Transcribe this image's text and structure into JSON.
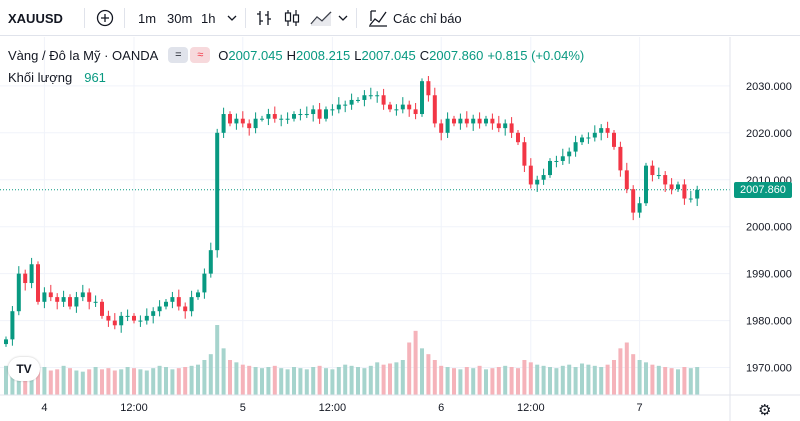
{
  "toolbar": {
    "symbol": "XAUUSD",
    "add_symbol_icon": "plus-circle-icon",
    "timeframes": [
      "1m",
      "30m",
      "1h"
    ],
    "chevron": "chevron-down-icon",
    "bar_type_icons": [
      "bars-icon",
      "candles-icon",
      "area-icon"
    ],
    "indicators_label": "Các chỉ báo",
    "indicators_icon": "indicators-icon"
  },
  "legend": {
    "title": "Vàng / Đô la Mỹ · OANDA",
    "O_label": "O",
    "O": "2007.045",
    "H_label": "H",
    "H": "2008.215",
    "L_label": "L",
    "L": "2007.045",
    "C_label": "C",
    "C": "2007.860",
    "change": "+0.815 (+0.04%)",
    "volume_label": "Khối lượng",
    "volume": "961"
  },
  "price_tag": "2007.860",
  "colors": {
    "up": "#089981",
    "down": "#f23645",
    "vol_up": "#a6d4cd",
    "vol_down": "#f5b3ba",
    "grid": "#f0f3fa"
  },
  "chart_data": {
    "type": "candlestick",
    "y_ticks": [
      "2030.000",
      "2020.000",
      "2010.000",
      "2000.000",
      "1990.000",
      "1980.000",
      "1970.000"
    ],
    "y_tick_values": [
      2030,
      2020,
      2010,
      2000,
      1990,
      1980,
      1970
    ],
    "x_ticks": [
      "4",
      "12:00",
      "5",
      "12:00",
      "6",
      "12:00",
      "7"
    ],
    "x_tick_index": [
      6,
      20,
      37,
      51,
      68,
      82,
      99
    ],
    "ylim": [
      1965,
      2037
    ],
    "last_price": 2007.86,
    "close": [
      1976,
      1982,
      1990,
      1988,
      1992,
      1984,
      1986,
      1985,
      1984,
      1985,
      1983,
      1985,
      1986,
      1984,
      1984,
      1981,
      1980,
      1979,
      1981,
      1981,
      1980,
      1980,
      1981,
      1982,
      1983,
      1984,
      1985,
      1983,
      1982,
      1985,
      1986,
      1990,
      1995,
      2020,
      2024,
      2022,
      2023,
      2022,
      2021,
      2023,
      2023,
      2024,
      2023,
      2023,
      2023,
      2024,
      2024,
      2024,
      2025,
      2023,
      2025,
      2025,
      2026,
      2026,
      2027,
      2027,
      2028,
      2028,
      2028,
      2026,
      2025,
      2025,
      2026,
      2025,
      2024,
      2031,
      2028,
      2022,
      2020,
      2023,
      2022,
      2023,
      2022,
      2023,
      2022,
      2023,
      2022,
      2021,
      2022,
      2020,
      2018,
      2013,
      2009,
      2010,
      2011,
      2014,
      2014,
      2015,
      2016,
      2018,
      2019,
      2019,
      2020,
      2021,
      2020,
      2017,
      2012,
      2008,
      2003,
      2005,
      2013,
      2011,
      2011,
      2009,
      2008,
      2009,
      2006,
      2006,
      2007.86
    ],
    "volumes": [
      25,
      22,
      24,
      23,
      20,
      22,
      24,
      21,
      22,
      25,
      23,
      21,
      20,
      22,
      24,
      22,
      23,
      21,
      22,
      24,
      23,
      22,
      21,
      23,
      25,
      24,
      22,
      23,
      24,
      25,
      26,
      30,
      35,
      60,
      40,
      30,
      28,
      26,
      25,
      24,
      23,
      24,
      25,
      23,
      22,
      24,
      23,
      22,
      24,
      25,
      23,
      22,
      24,
      26,
      25,
      24,
      23,
      25,
      28,
      26,
      27,
      28,
      30,
      45,
      55,
      40,
      35,
      30,
      25,
      24,
      23,
      22,
      24,
      23,
      25,
      22,
      23,
      24,
      25,
      24,
      23,
      30,
      28,
      26,
      25,
      24,
      23,
      25,
      26,
      24,
      27,
      26,
      25,
      24,
      26,
      30,
      40,
      45,
      35,
      30,
      28,
      26,
      25,
      24,
      23,
      22,
      24,
      23,
      24
    ]
  }
}
